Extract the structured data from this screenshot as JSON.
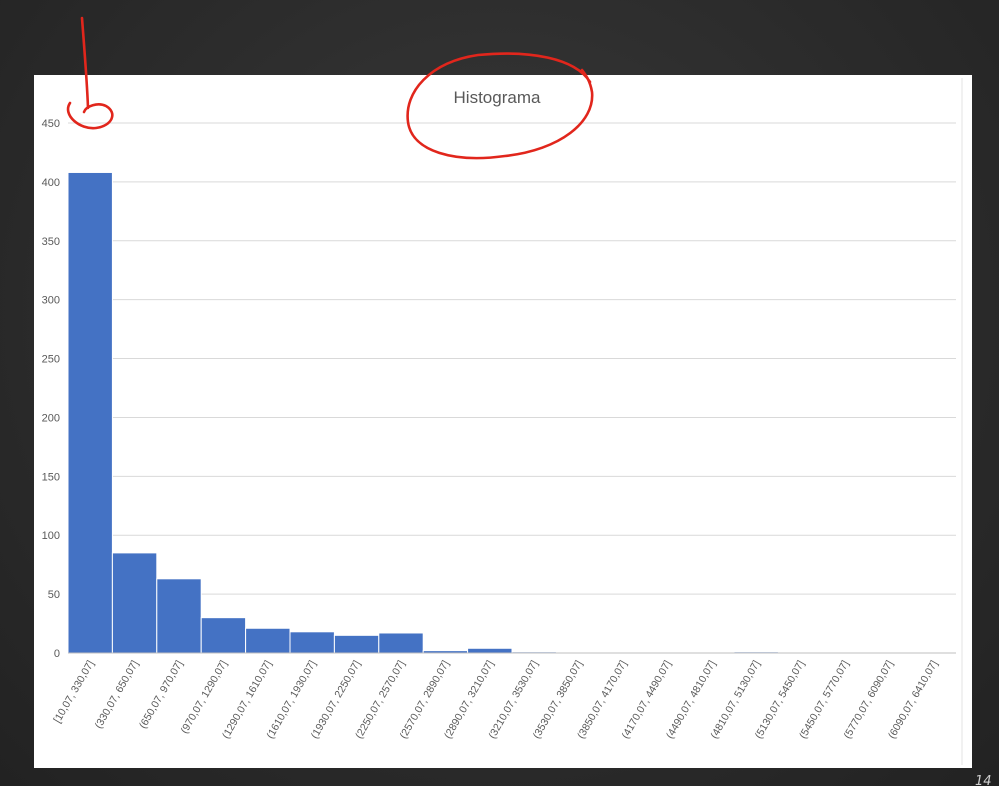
{
  "chart_data": {
    "type": "bar",
    "title": "Histograma",
    "categories": [
      "[10,07, 330,07]",
      "(330,07, 650,07]",
      "(650,07, 970,07]",
      "(970,07, 1290,07]",
      "(1290,07, 1610,07]",
      "(1610,07, 1930,07]",
      "(1930,07, 2250,07]",
      "(2250,07, 2570,07]",
      "(2570,07, 2890,07]",
      "(2890,07, 3210,07]",
      "(3210,07, 3530,07]",
      "(3530,07, 3850,07]",
      "(3850,07, 4170,07]",
      "(4170,07, 4490,07]",
      "(4490,07, 4810,07]",
      "(4810,07, 5130,07]",
      "(5130,07, 5450,07]",
      "(5450,07, 5770,07]",
      "(5770,07, 6090,07]",
      "(6090,07, 6410,07]"
    ],
    "values": [
      408,
      85,
      63,
      30,
      21,
      18,
      15,
      17,
      2,
      4,
      1,
      0,
      0,
      0,
      0,
      1,
      0,
      0,
      0,
      0
    ],
    "ylim": [
      0,
      450
    ],
    "yticks": [
      0,
      50,
      100,
      150,
      200,
      250,
      300,
      350,
      400,
      450
    ],
    "grid": true,
    "legend": "none",
    "colors": {
      "bar": "#4472c4",
      "gridline": "#d9d9d9",
      "annotation": "#e1261c"
    }
  }
}
